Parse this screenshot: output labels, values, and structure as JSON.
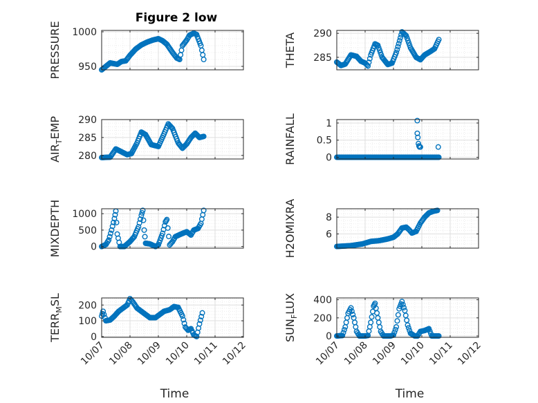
{
  "figure": {
    "title": "Figure 2 low"
  },
  "colors": {
    "marker": "#0072BD",
    "axis": "#262626",
    "grid_major": "#dfdfdf",
    "grid_minor": "#ebebeb"
  },
  "chart_data": [
    {
      "id": "pressure",
      "type": "scatter",
      "ylabel": {
        "main": "PRESSURE",
        "sub": "",
        "tail": ""
      },
      "ylim": [
        945,
        1002
      ],
      "yticks": [
        950,
        1000
      ],
      "ytick_labels": [
        "950",
        "1000"
      ],
      "xlim": [
        0,
        5
      ],
      "xticks": [
        0,
        1,
        2,
        3,
        4,
        5
      ],
      "xtick_labels": [
        "10/07",
        "10/08",
        "10/09",
        "10/10",
        "10/11",
        "10/12"
      ],
      "grid": "on",
      "minor_grid": "on",
      "show_xtick_labels": false,
      "xlabel": "",
      "marker": "open-circle",
      "keypoints": [
        [
          0,
          945
        ],
        [
          0.15,
          950
        ],
        [
          0.3,
          955
        ],
        [
          0.55,
          953
        ],
        [
          0.7,
          957
        ],
        [
          0.85,
          958
        ],
        [
          1.0,
          966
        ],
        [
          1.2,
          975
        ],
        [
          1.4,
          981
        ],
        [
          1.6,
          985
        ],
        [
          1.8,
          988
        ],
        [
          2.0,
          990
        ],
        [
          2.15,
          987
        ],
        [
          2.3,
          982
        ],
        [
          2.5,
          970
        ],
        [
          2.65,
          962
        ],
        [
          2.75,
          960
        ],
        [
          2.85,
          980
        ],
        [
          3.0,
          988
        ],
        [
          3.1,
          995
        ],
        [
          3.25,
          998
        ],
        [
          3.35,
          996
        ],
        [
          3.5,
          980
        ],
        [
          3.6,
          960
        ]
      ]
    },
    {
      "id": "theta",
      "type": "scatter",
      "ylabel": {
        "main": "THETA",
        "sub": "",
        "tail": ""
      },
      "ylim": [
        282.4,
        290.6
      ],
      "yticks": [
        285,
        290
      ],
      "ytick_labels": [
        "285",
        "290"
      ],
      "xlim": [
        0,
        5
      ],
      "xticks": [
        0,
        1,
        2,
        3,
        4,
        5
      ],
      "xtick_labels": [
        "10/07",
        "10/08",
        "10/09",
        "10/10",
        "10/11",
        "10/12"
      ],
      "grid": "on",
      "minor_grid": "on",
      "show_xtick_labels": false,
      "xlabel": "",
      "marker": "open-circle",
      "keypoints": [
        [
          0,
          284
        ],
        [
          0.15,
          283.3
        ],
        [
          0.3,
          283.6
        ],
        [
          0.5,
          285.5
        ],
        [
          0.7,
          285.2
        ],
        [
          0.85,
          284.2
        ],
        [
          1.0,
          283.8
        ],
        [
          1.1,
          283.2
        ],
        [
          1.2,
          285.5
        ],
        [
          1.35,
          287.8
        ],
        [
          1.45,
          287.5
        ],
        [
          1.6,
          285
        ],
        [
          1.8,
          283.5
        ],
        [
          1.95,
          283.8
        ],
        [
          2.1,
          286
        ],
        [
          2.3,
          290.3
        ],
        [
          2.45,
          289.5
        ],
        [
          2.6,
          287
        ],
        [
          2.8,
          285
        ],
        [
          2.95,
          284.5
        ],
        [
          3.1,
          285.5
        ],
        [
          3.3,
          286.2
        ],
        [
          3.45,
          286.8
        ],
        [
          3.6,
          288.7
        ]
      ]
    },
    {
      "id": "air_temp",
      "type": "scatter",
      "ylabel": {
        "main": "AIR",
        "sub": "T",
        "tail": "EMP"
      },
      "ylim": [
        279,
        290
      ],
      "yticks": [
        280,
        285,
        290
      ],
      "ytick_labels": [
        "280",
        "285",
        "290"
      ],
      "xlim": [
        0,
        5
      ],
      "xticks": [
        0,
        1,
        2,
        3,
        4,
        5
      ],
      "xtick_labels": [
        "10/07",
        "10/08",
        "10/09",
        "10/10",
        "10/11",
        "10/12"
      ],
      "grid": "on",
      "minor_grid": "on",
      "show_xtick_labels": false,
      "xlabel": "",
      "marker": "open-circle",
      "keypoints": [
        [
          0,
          279.4
        ],
        [
          0.3,
          279.5
        ],
        [
          0.5,
          281.8
        ],
        [
          0.7,
          281
        ],
        [
          0.9,
          280.2
        ],
        [
          1.05,
          280.5
        ],
        [
          1.25,
          283.5
        ],
        [
          1.4,
          286.5
        ],
        [
          1.55,
          285.8
        ],
        [
          1.75,
          283
        ],
        [
          2.0,
          282.5
        ],
        [
          2.2,
          286
        ],
        [
          2.35,
          288.8
        ],
        [
          2.5,
          287.5
        ],
        [
          2.7,
          283.5
        ],
        [
          2.85,
          282
        ],
        [
          3.0,
          283.2
        ],
        [
          3.15,
          285
        ],
        [
          3.3,
          286.2
        ],
        [
          3.45,
          285
        ],
        [
          3.6,
          285.3
        ]
      ]
    },
    {
      "id": "rainfall",
      "type": "scatter",
      "ylabel": {
        "main": "RAINFALL",
        "sub": "",
        "tail": ""
      },
      "ylim": [
        -0.05,
        1.1
      ],
      "yticks": [
        0,
        0.5,
        1
      ],
      "ytick_labels": [
        "0",
        "0.5",
        "1"
      ],
      "xlim": [
        0,
        5
      ],
      "xticks": [
        0,
        1,
        2,
        3,
        4,
        5
      ],
      "xtick_labels": [
        "10/07",
        "10/08",
        "10/09",
        "10/10",
        "10/11",
        "10/12"
      ],
      "grid": "on",
      "minor_grid": "on",
      "show_xtick_labels": false,
      "xlabel": "",
      "marker": "open-circle",
      "baseline": [
        0,
        3.6
      ],
      "spikes": [
        [
          2.84,
          1.07
        ],
        [
          2.84,
          0.7
        ],
        [
          2.86,
          0.58
        ],
        [
          2.88,
          0.4
        ],
        [
          2.9,
          0.33
        ],
        [
          2.92,
          0.3
        ],
        [
          2.95,
          0.3
        ],
        [
          3.58,
          0.3
        ]
      ]
    },
    {
      "id": "mixdepth",
      "type": "scatter",
      "ylabel": {
        "main": "MIXDEPTH",
        "sub": "",
        "tail": ""
      },
      "ylim": [
        -50,
        1150
      ],
      "yticks": [
        0,
        500,
        1000
      ],
      "ytick_labels": [
        "0",
        "500",
        "1000"
      ],
      "xlim": [
        0,
        5
      ],
      "xticks": [
        0,
        1,
        2,
        3,
        4,
        5
      ],
      "xtick_labels": [
        "10/07",
        "10/08",
        "10/09",
        "10/10",
        "10/11",
        "10/12"
      ],
      "grid": "on",
      "minor_grid": "on",
      "show_xtick_labels": false,
      "xlabel": "",
      "marker": "open-circle",
      "keypoints": [
        [
          0,
          0
        ],
        [
          0.15,
          60
        ],
        [
          0.25,
          200
        ],
        [
          0.35,
          500
        ],
        [
          0.45,
          850
        ],
        [
          0.5,
          1080
        ],
        [
          0.55,
          380
        ],
        [
          0.65,
          0
        ],
        [
          0.8,
          0
        ],
        [
          1.0,
          150
        ],
        [
          1.15,
          300
        ],
        [
          1.3,
          600
        ],
        [
          1.4,
          950
        ],
        [
          1.45,
          1100
        ],
        [
          1.5,
          500
        ],
        [
          1.55,
          100
        ],
        [
          1.7,
          80
        ],
        [
          1.9,
          0
        ],
        [
          2.0,
          50
        ],
        [
          2.15,
          400
        ],
        [
          2.25,
          750
        ],
        [
          2.3,
          820
        ],
        [
          2.4,
          50
        ],
        [
          2.5,
          150
        ],
        [
          2.6,
          300
        ],
        [
          2.8,
          380
        ],
        [
          3.0,
          450
        ],
        [
          3.15,
          350
        ],
        [
          3.25,
          500
        ],
        [
          3.4,
          550
        ],
        [
          3.5,
          700
        ],
        [
          3.6,
          1100
        ]
      ]
    },
    {
      "id": "h2omixra",
      "type": "scatter",
      "ylabel": {
        "main": "H2OMIXRA",
        "sub": "",
        "tail": ""
      },
      "ylim": [
        4.3,
        9.0
      ],
      "yticks": [
        6,
        8
      ],
      "ytick_labels": [
        "6",
        "8"
      ],
      "xlim": [
        0,
        5
      ],
      "xticks": [
        0,
        1,
        2,
        3,
        4,
        5
      ],
      "xtick_labels": [
        "10/07",
        "10/08",
        "10/09",
        "10/10",
        "10/11",
        "10/12"
      ],
      "grid": "on",
      "minor_grid": "on",
      "show_xtick_labels": false,
      "xlabel": "",
      "marker": "open-circle",
      "keypoints": [
        [
          0,
          4.5
        ],
        [
          0.5,
          4.6
        ],
        [
          0.9,
          4.8
        ],
        [
          1.2,
          5.1
        ],
        [
          1.5,
          5.2
        ],
        [
          1.8,
          5.4
        ],
        [
          2.0,
          5.6
        ],
        [
          2.15,
          6.0
        ],
        [
          2.3,
          6.7
        ],
        [
          2.45,
          6.8
        ],
        [
          2.55,
          6.5
        ],
        [
          2.65,
          6.1
        ],
        [
          2.8,
          6.3
        ],
        [
          2.95,
          7.3
        ],
        [
          3.1,
          8.0
        ],
        [
          3.25,
          8.5
        ],
        [
          3.4,
          8.7
        ],
        [
          3.55,
          8.8
        ]
      ]
    },
    {
      "id": "terr_msl",
      "type": "scatter",
      "ylabel": {
        "main": "TERR",
        "sub": "M",
        "tail": "SL"
      },
      "ylim": [
        -5,
        245
      ],
      "yticks": [
        0,
        100,
        200
      ],
      "ytick_labels": [
        "0",
        "100",
        "200"
      ],
      "xlim": [
        0,
        5
      ],
      "xticks": [
        0,
        1,
        2,
        3,
        4,
        5
      ],
      "xtick_labels": [
        "10/07",
        "10/08",
        "10/09",
        "10/10",
        "10/11",
        "10/12"
      ],
      "grid": "on",
      "minor_grid": "on",
      "show_xtick_labels": true,
      "xlabel": "Time",
      "marker": "open-circle",
      "keypoints": [
        [
          0,
          130
        ],
        [
          0.05,
          160
        ],
        [
          0.15,
          100
        ],
        [
          0.3,
          105
        ],
        [
          0.45,
          130
        ],
        [
          0.6,
          160
        ],
        [
          0.75,
          180
        ],
        [
          0.9,
          200
        ],
        [
          1.0,
          240
        ],
        [
          1.1,
          220
        ],
        [
          1.25,
          180
        ],
        [
          1.4,
          160
        ],
        [
          1.55,
          140
        ],
        [
          1.7,
          120
        ],
        [
          1.9,
          120
        ],
        [
          2.05,
          140
        ],
        [
          2.2,
          160
        ],
        [
          2.4,
          170
        ],
        [
          2.55,
          190
        ],
        [
          2.7,
          185
        ],
        [
          2.85,
          130
        ],
        [
          2.95,
          60
        ],
        [
          3.05,
          40
        ],
        [
          3.15,
          50
        ],
        [
          3.25,
          10
        ],
        [
          3.35,
          0
        ],
        [
          3.45,
          80
        ],
        [
          3.55,
          150
        ]
      ]
    },
    {
      "id": "sun_flux",
      "type": "scatter",
      "ylabel": {
        "main": "SUN",
        "sub": "F",
        "tail": "LUX"
      },
      "ylim": [
        -15,
        420
      ],
      "yticks": [
        0,
        200,
        400
      ],
      "ytick_labels": [
        "0",
        "200",
        "400"
      ],
      "xlim": [
        0,
        5
      ],
      "xticks": [
        0,
        1,
        2,
        3,
        4,
        5
      ],
      "xtick_labels": [
        "10/07",
        "10/08",
        "10/09",
        "10/10",
        "10/11",
        "10/12"
      ],
      "grid": "on",
      "minor_grid": "on",
      "show_xtick_labels": true,
      "xlabel": "Time",
      "marker": "open-circle",
      "keypoints": [
        [
          0,
          0
        ],
        [
          0.2,
          5
        ],
        [
          0.3,
          100
        ],
        [
          0.4,
          250
        ],
        [
          0.5,
          310
        ],
        [
          0.6,
          200
        ],
        [
          0.7,
          50
        ],
        [
          0.8,
          0
        ],
        [
          1.0,
          0
        ],
        [
          1.1,
          5
        ],
        [
          1.2,
          150
        ],
        [
          1.3,
          330
        ],
        [
          1.35,
          360
        ],
        [
          1.45,
          200
        ],
        [
          1.55,
          50
        ],
        [
          1.65,
          0
        ],
        [
          1.9,
          0
        ],
        [
          2.0,
          10
        ],
        [
          2.1,
          100
        ],
        [
          2.2,
          300
        ],
        [
          2.3,
          380
        ],
        [
          2.4,
          280
        ],
        [
          2.5,
          120
        ],
        [
          2.6,
          30
        ],
        [
          2.75,
          0
        ],
        [
          2.85,
          0
        ],
        [
          2.95,
          50
        ],
        [
          3.1,
          60
        ],
        [
          3.25,
          80
        ],
        [
          3.35,
          0
        ],
        [
          3.6,
          0
        ]
      ]
    }
  ]
}
